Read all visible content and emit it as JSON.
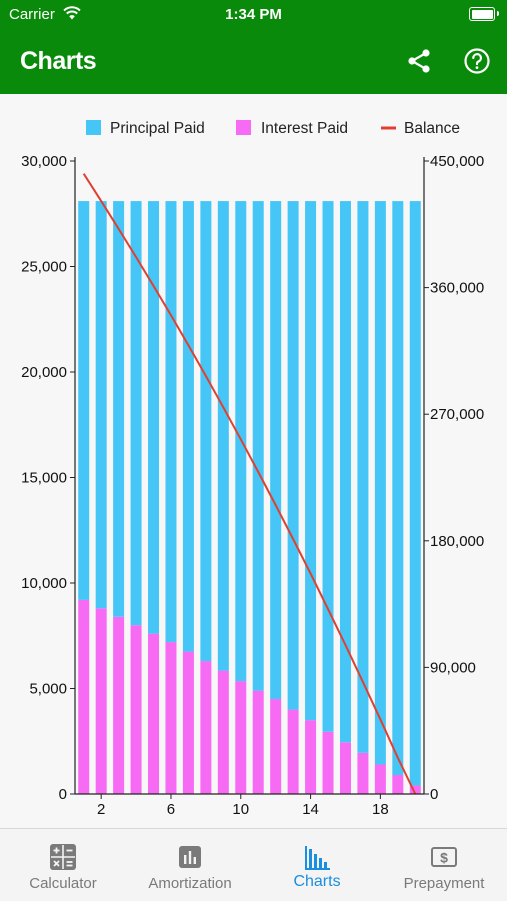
{
  "status": {
    "carrier": "Carrier",
    "time": "1:34 PM"
  },
  "nav": {
    "title": "Charts"
  },
  "icons": {
    "share": "share-icon",
    "help": "help-circle-icon"
  },
  "colors": {
    "principal": "#45c6f7",
    "interest": "#f76af4",
    "balance": "#e04030",
    "brand": "#0a8a0a",
    "active_tab": "#1a8ee0"
  },
  "chart_data": {
    "type": "bar",
    "stacked": true,
    "x": [
      1,
      2,
      3,
      4,
      5,
      6,
      7,
      8,
      9,
      10,
      11,
      12,
      13,
      14,
      15,
      16,
      17,
      18,
      19,
      20
    ],
    "x_ticks": [
      "2",
      "6",
      "10",
      "14",
      "18"
    ],
    "series": [
      {
        "name": "Principal Paid",
        "axis": "left",
        "values": [
          18900,
          19300,
          19700,
          20100,
          20500,
          20900,
          21350,
          21800,
          22250,
          22750,
          23200,
          23600,
          24100,
          24600,
          25150,
          25650,
          26150,
          26700,
          27200,
          27700
        ]
      },
      {
        "name": "Interest Paid",
        "axis": "left",
        "values": [
          9200,
          8800,
          8400,
          8000,
          7600,
          7200,
          6750,
          6300,
          5850,
          5350,
          4900,
          4500,
          4000,
          3500,
          2950,
          2450,
          1950,
          1400,
          900,
          400
        ]
      },
      {
        "name": "Balance",
        "type": "line",
        "axis": "right",
        "values": [
          441000,
          421500,
          401800,
          381700,
          361200,
          340300,
          318950,
          297150,
          274900,
          252150,
          228950,
          205350,
          181250,
          156650,
          131500,
          105850,
          79700,
          53000,
          25800,
          0
        ]
      }
    ],
    "y_left": {
      "ylim": [
        0,
        30000
      ],
      "ticks": [
        "0",
        "5,000",
        "10,000",
        "15,000",
        "20,000",
        "25,000",
        "30,000"
      ]
    },
    "y_right": {
      "ylim": [
        0,
        450000
      ],
      "ticks": [
        "0",
        "90,000",
        "180,000",
        "270,000",
        "360,000",
        "450,000"
      ]
    },
    "legend": {
      "placement": "top-center"
    },
    "grid": false
  },
  "tabs": [
    {
      "label": "Calculator",
      "icon": "calculator-icon",
      "active": false
    },
    {
      "label": "Amortization",
      "icon": "bar-chart-icon",
      "active": false
    },
    {
      "label": "Charts",
      "icon": "charts-icon",
      "active": true
    },
    {
      "label": "Prepayment",
      "icon": "dollar-icon",
      "active": false
    }
  ]
}
